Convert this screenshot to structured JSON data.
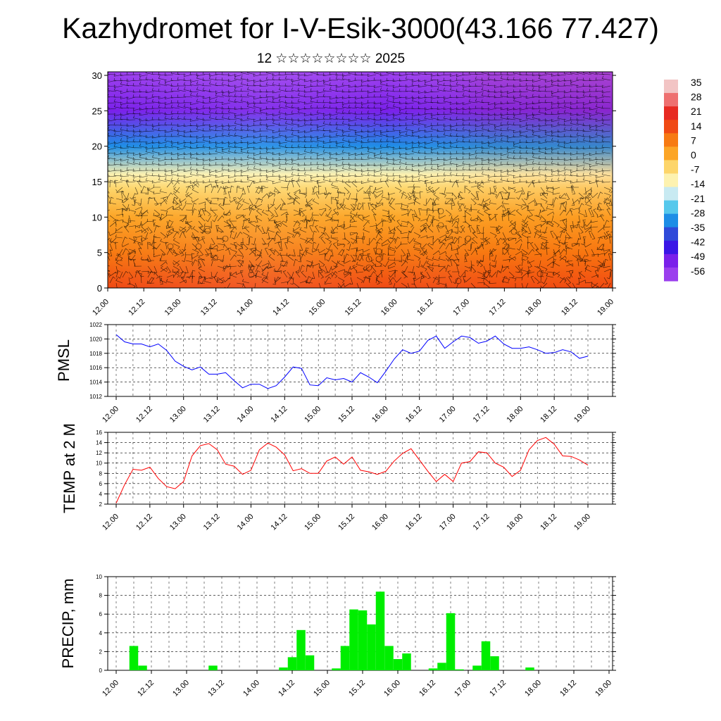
{
  "title": "Kazhydromet for I-V-Esik-3000(43.166 77.427)",
  "subtitle": "12 ☆☆☆☆☆☆☆☆ 2025",
  "x_tick_labels": [
    "12.00",
    "12.12",
    "13.00",
    "13.12",
    "14.00",
    "14.12",
    "15.00",
    "15.12",
    "16.00",
    "16.12",
    "17.00",
    "17.12",
    "18.00",
    "18.12",
    "19.00"
  ],
  "colors": {
    "pmsl_line": "#0000ff",
    "temp_line": "#ff0000",
    "precip_bar": "#00ee00",
    "grid": "#000000"
  },
  "chart_data": [
    {
      "type": "heatmap",
      "title": "",
      "xlabel": "",
      "ylabel": "",
      "y_ticks": [
        0,
        5,
        10,
        15,
        20,
        25,
        30
      ],
      "ylim": [
        0,
        30.5
      ],
      "x_categories": [
        "12.00",
        "12.12",
        "13.00",
        "13.12",
        "14.00",
        "14.12",
        "15.00",
        "15.12",
        "16.00",
        "16.12",
        "17.00",
        "17.12",
        "18.00",
        "18.12",
        "19.00"
      ],
      "overlay": "wind barbs",
      "colorbar": {
        "labels": [
          "35",
          "28",
          "21",
          "14",
          "7",
          "0",
          "-7",
          "-14",
          "-21",
          "-28",
          "-35",
          "-42",
          "-49",
          "-56"
        ],
        "colors": [
          "#f2c4c4",
          "#ee7070",
          "#e72a22",
          "#f04a14",
          "#f77a12",
          "#fca526",
          "#fdd56a",
          "#fdf2b0",
          "#c8eaf2",
          "#56c8ec",
          "#1d8de6",
          "#2f4ad9",
          "#3a16e6",
          "#7a20ea",
          "#9b3fee"
        ]
      },
      "temperature_profile": [
        {
          "height": 0,
          "value": 14
        },
        {
          "height": 5,
          "value": 8
        },
        {
          "height": 10,
          "value": 3
        },
        {
          "height": 14,
          "value": -5
        },
        {
          "height": 16,
          "value": -15
        },
        {
          "height": 20,
          "value": -35
        },
        {
          "height": 25,
          "value": -56
        },
        {
          "height": 30,
          "value": -60
        }
      ]
    },
    {
      "type": "line",
      "ylabel": "PMSL",
      "ylim": [
        1012,
        1022
      ],
      "y_ticks": [
        1012,
        1014,
        1016,
        1018,
        1020,
        1022
      ],
      "categories": [
        "12.00",
        "12.12",
        "13.00",
        "13.12",
        "14.00",
        "14.12",
        "15.00",
        "15.12",
        "16.00",
        "16.12",
        "17.00",
        "17.12",
        "18.00",
        "18.12",
        "19.00"
      ],
      "x": [
        0,
        0.25,
        0.5,
        0.75,
        1,
        1.25,
        1.5,
        1.75,
        2,
        2.25,
        2.5,
        2.75,
        3,
        3.25,
        3.5,
        3.75,
        4,
        4.25,
        4.5,
        4.75,
        5,
        5.25,
        5.5,
        5.75,
        6,
        6.25,
        6.5,
        6.75,
        7,
        7.25,
        7.5,
        7.75,
        8,
        8.25,
        8.5,
        8.75,
        9,
        9.25,
        9.5,
        9.75,
        10,
        10.25,
        10.5,
        10.75,
        11,
        11.25,
        11.5,
        11.75,
        12,
        12.25,
        12.5,
        12.75,
        13,
        13.25,
        13.5,
        13.75,
        14
      ],
      "series": [
        {
          "values": [
            1020.6,
            1019.6,
            1019.3,
            1019.3,
            1018.9,
            1019.3,
            1018.4,
            1016.9,
            1016.2,
            1015.7,
            1016.1,
            1015.1,
            1015.1,
            1015.3,
            1014.2,
            1013.2,
            1013.7,
            1013.7,
            1013.1,
            1013.5,
            1014.7,
            1016.1,
            1015.9,
            1013.6,
            1013.5,
            1014.6,
            1014.3,
            1014.5,
            1014.0,
            1015.3,
            1014.7,
            1013.9,
            1015.5,
            1017.2,
            1018.5,
            1018.0,
            1018.3,
            1019.8,
            1020.4,
            1018.7,
            1019.6,
            1020.4,
            1020.2,
            1019.4,
            1019.7,
            1020.4,
            1019.3,
            1018.7,
            1018.7,
            1018.9,
            1018.5,
            1018.0,
            1018.1,
            1018.5,
            1018.2,
            1017.3,
            1017.6
          ]
        }
      ]
    },
    {
      "type": "line",
      "ylabel": "TEMP at 2 M",
      "ylim": [
        2,
        16
      ],
      "y_ticks": [
        2,
        4,
        6,
        8,
        10,
        12,
        14,
        16
      ],
      "categories": [
        "12.00",
        "12.12",
        "13.00",
        "13.12",
        "14.00",
        "14.12",
        "15.00",
        "15.12",
        "16.00",
        "16.12",
        "17.00",
        "17.12",
        "18.00",
        "18.12",
        "19.00"
      ],
      "x": [
        0,
        0.25,
        0.5,
        0.75,
        1,
        1.25,
        1.5,
        1.75,
        2,
        2.25,
        2.5,
        2.75,
        3,
        3.25,
        3.5,
        3.75,
        4,
        4.25,
        4.5,
        4.75,
        5,
        5.25,
        5.5,
        5.75,
        6,
        6.25,
        6.5,
        6.75,
        7,
        7.25,
        7.5,
        7.75,
        8,
        8.25,
        8.5,
        8.75,
        9,
        9.25,
        9.5,
        9.75,
        10,
        10.25,
        10.5,
        10.75,
        11,
        11.25,
        11.5,
        11.75,
        12,
        12.25,
        12.5,
        12.75,
        13,
        13.25,
        13.5,
        13.75,
        14
      ],
      "series": [
        {
          "values": [
            2.2,
            5.8,
            8.8,
            8.6,
            9.2,
            7.0,
            5.4,
            5.0,
            6.4,
            11.4,
            13.4,
            13.8,
            12.6,
            9.8,
            9.4,
            7.8,
            8.6,
            12.6,
            13.9,
            13.1,
            11.6,
            8.5,
            8.9,
            8.0,
            8.0,
            10.4,
            11.2,
            9.8,
            11.2,
            8.6,
            8.3,
            7.8,
            8.4,
            10.4,
            11.9,
            12.8,
            10.6,
            8.4,
            6.4,
            7.8,
            6.4,
            10.0,
            10.3,
            12.2,
            12.0,
            10.0,
            9.2,
            7.4,
            8.6,
            12.6,
            14.4,
            15.0,
            13.7,
            11.4,
            11.3,
            10.6,
            9.6
          ]
        }
      ]
    },
    {
      "type": "bar",
      "ylabel": "PRECIP, mm",
      "ylim": [
        0,
        10
      ],
      "y_ticks": [
        0,
        2,
        4,
        6,
        8,
        10
      ],
      "categories": [
        "12.00",
        "12.12",
        "13.00",
        "13.12",
        "14.00",
        "14.12",
        "15.00",
        "15.12",
        "16.00",
        "16.12",
        "17.00",
        "17.12",
        "18.00",
        "18.12",
        "19.00"
      ],
      "x": [
        0,
        0.25,
        0.5,
        0.75,
        1,
        1.25,
        1.5,
        1.75,
        2,
        2.25,
        2.5,
        2.75,
        3,
        3.25,
        3.5,
        3.75,
        4,
        4.25,
        4.5,
        4.75,
        5,
        5.25,
        5.5,
        5.75,
        6,
        6.25,
        6.5,
        6.75,
        7,
        7.25,
        7.5,
        7.75,
        8,
        8.25,
        8.5,
        8.75,
        9,
        9.25,
        9.5,
        9.75,
        10,
        10.25,
        10.5,
        10.75,
        11,
        11.25,
        11.5,
        11.75,
        12,
        12.25,
        12.5,
        12.75,
        13,
        13.25,
        13.5,
        13.75,
        14
      ],
      "values": [
        0,
        0,
        2.6,
        0.5,
        0,
        0,
        0,
        0,
        0,
        0,
        0,
        0.5,
        0,
        0,
        0,
        0,
        0,
        0,
        0,
        0.3,
        1.4,
        4.3,
        1.6,
        0,
        0,
        0.2,
        2.6,
        6.5,
        6.4,
        4.9,
        8.4,
        2.6,
        1.2,
        1.8,
        0,
        0,
        0.2,
        0.8,
        6.1,
        0.1,
        0,
        0.5,
        3.1,
        1.5,
        0,
        0,
        0,
        0.3,
        0,
        0,
        0,
        0,
        0,
        0,
        0,
        0,
        0
      ]
    }
  ]
}
